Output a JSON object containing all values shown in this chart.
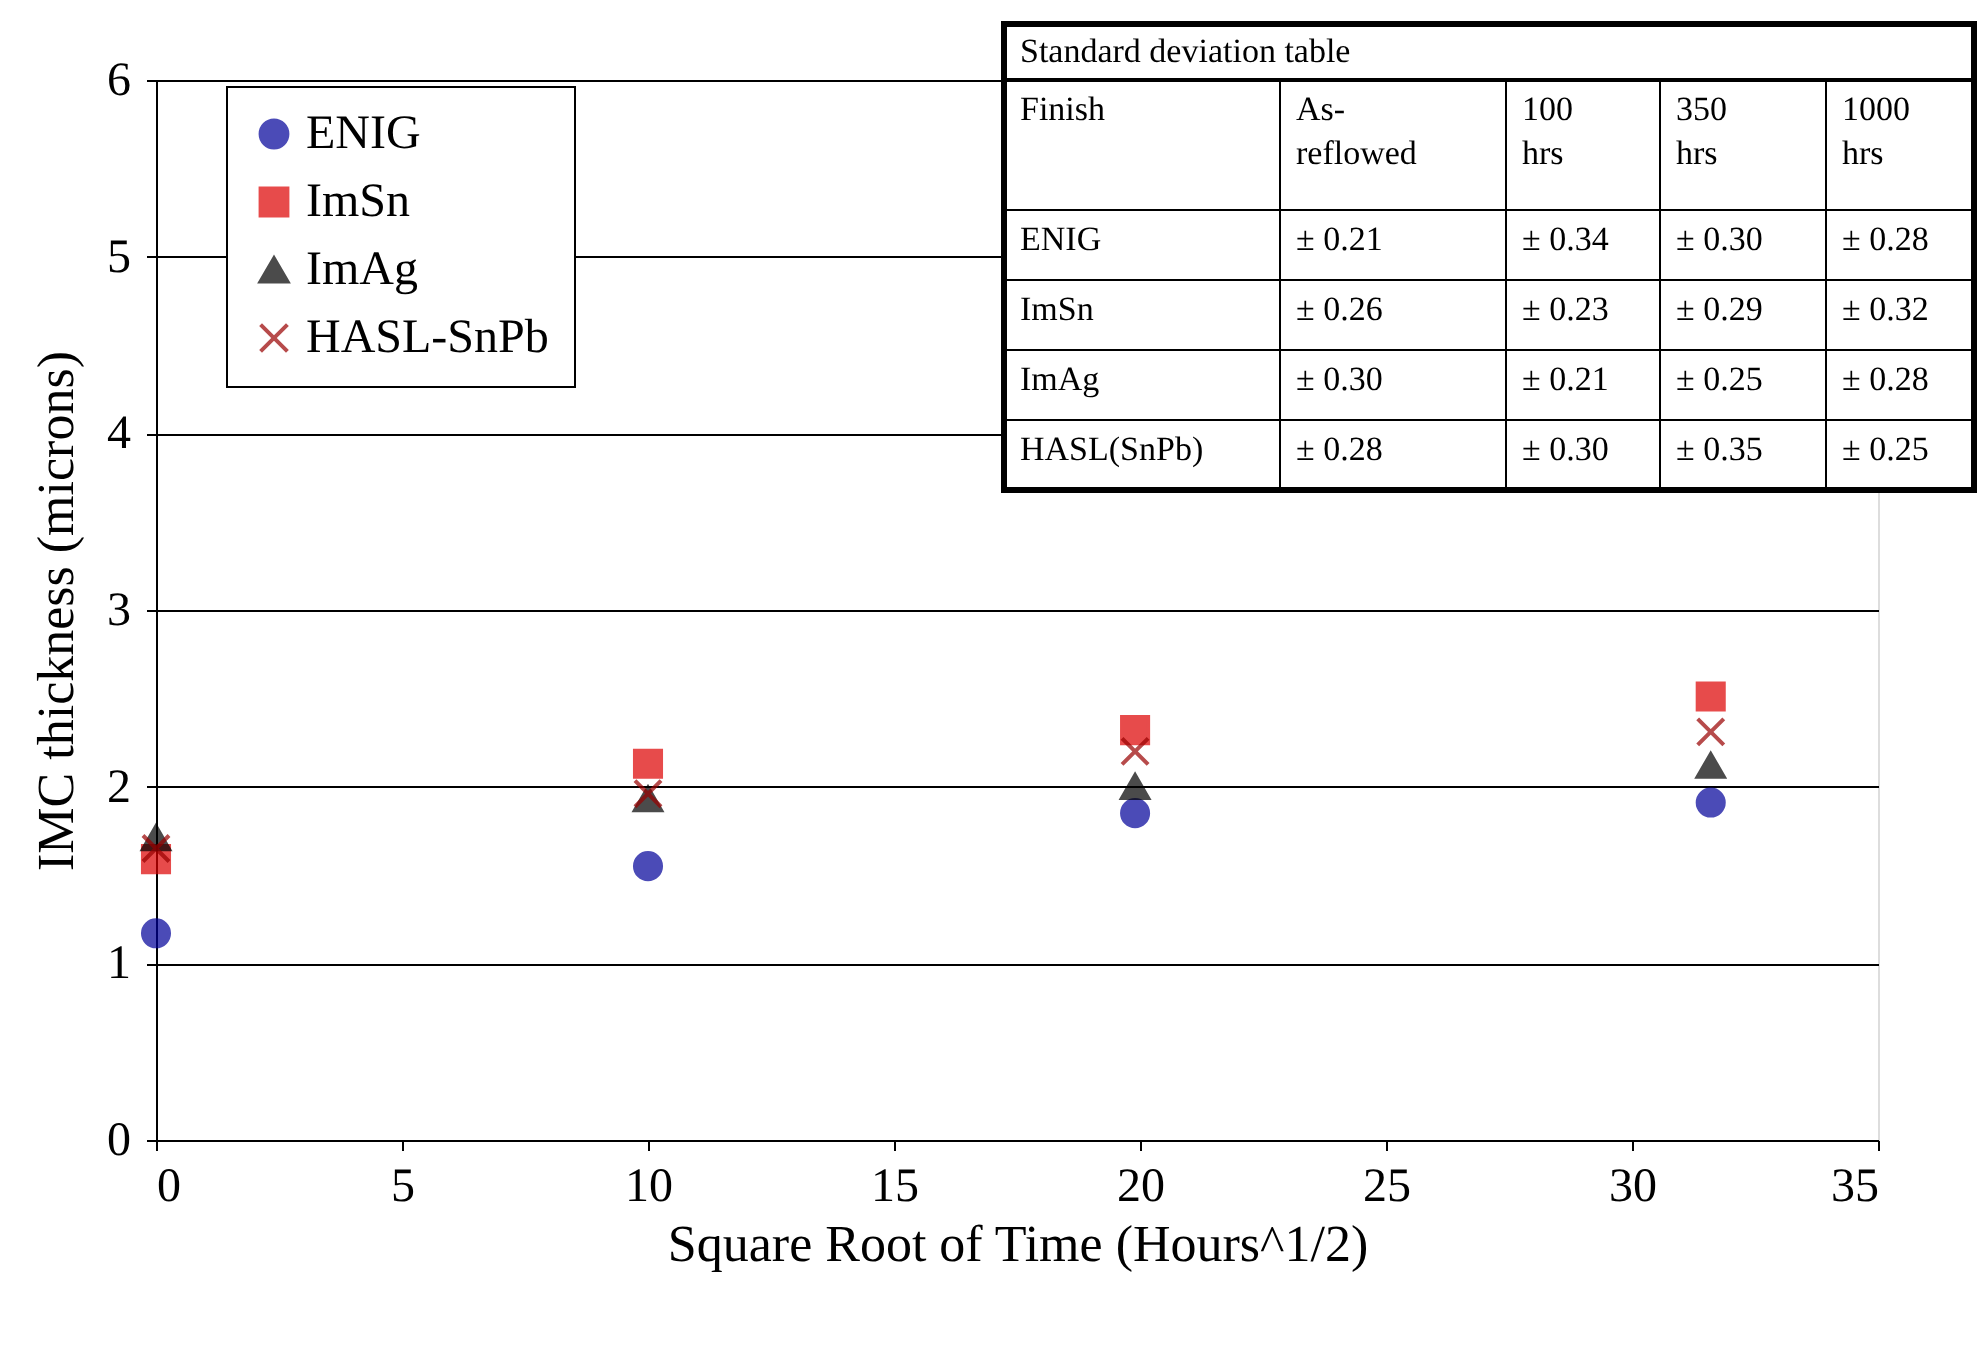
{
  "chart_data": {
    "type": "scatter",
    "xlabel": "Square Root of Time (Hours^1/2)",
    "ylabel": "IMC thickness (microns)",
    "x": [
      0,
      10,
      19.9,
      31.6
    ],
    "series": [
      {
        "name": "ENIG",
        "color": "#000099",
        "marker": "circle",
        "values": [
          1.17,
          1.55,
          1.85,
          1.91
        ]
      },
      {
        "name": "ImSn",
        "color": "#dd0000",
        "marker": "square",
        "values": [
          1.59,
          2.13,
          2.32,
          2.51
        ]
      },
      {
        "name": "ImAg",
        "color": "#000000",
        "marker": "triangle",
        "values": [
          1.71,
          1.93,
          2.0,
          2.12
        ]
      },
      {
        "name": "HASL-SnPb",
        "color": "#990000",
        "marker": "cross",
        "values": [
          1.65,
          1.96,
          2.2,
          2.31
        ]
      }
    ],
    "xlim": [
      0,
      35
    ],
    "xticks": [
      0,
      5,
      10,
      15,
      20,
      25,
      30,
      35
    ],
    "ylim": [
      0,
      6
    ],
    "yticks": [
      0,
      1,
      2,
      3,
      4,
      5,
      6
    ],
    "grid": "y",
    "legend": "top left",
    "annotations": [
      "Standard deviation table",
      "Finish",
      "As-\nreflowed",
      "100\nhrs",
      "350\nhrs",
      "1000\nhrs",
      "ENIG",
      "± 0.21",
      "± 0.34",
      "± 0.30",
      "± 0.28",
      "ImSn",
      "± 0.26",
      "± 0.23",
      "± 0.29",
      "± 0.32",
      "ImAg",
      "± 0.30",
      "± 0.21",
      "± 0.25",
      "± 0.28",
      "HASL(SnPb)",
      "± 0.28",
      "± 0.30",
      "± 0.35",
      "± 0.25"
    ]
  }
}
